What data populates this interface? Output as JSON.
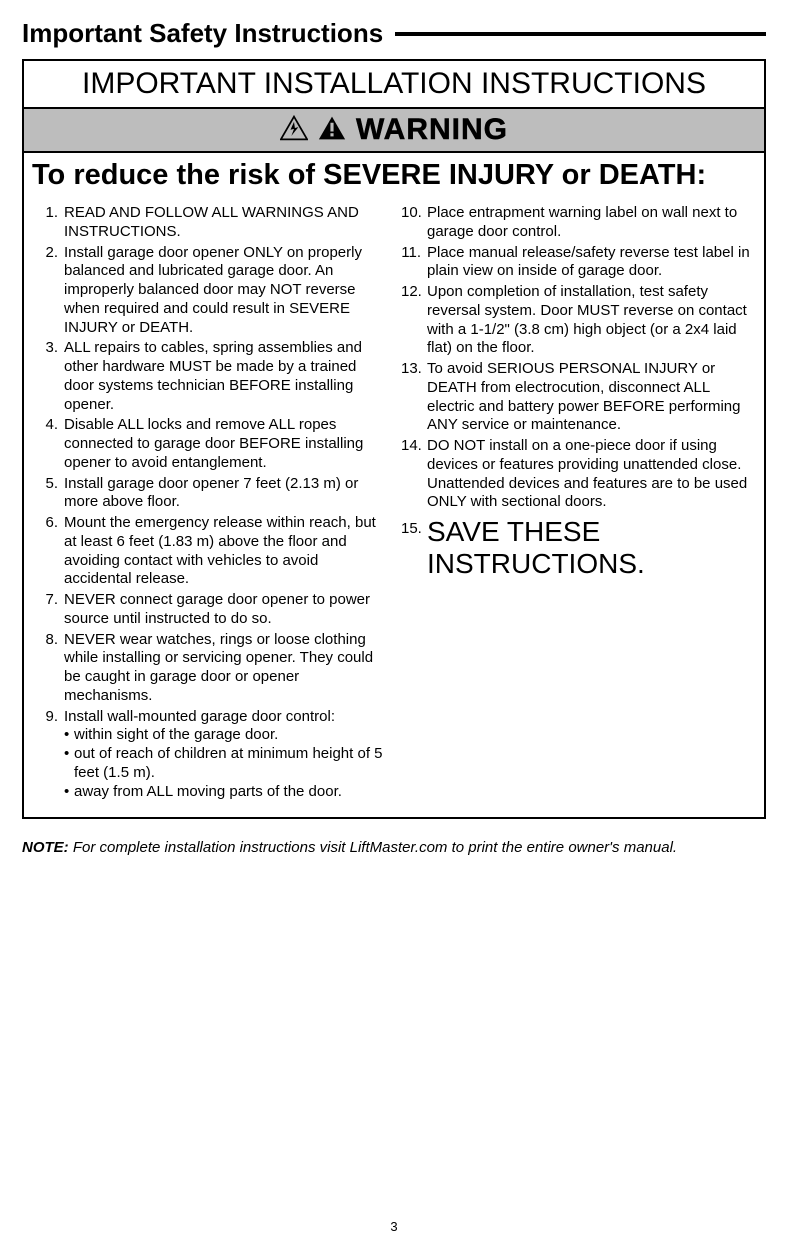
{
  "colors": {
    "text": "#000000",
    "background": "#ffffff",
    "warning_bar_bg": "#bdbdbd",
    "border": "#000000"
  },
  "typography": {
    "section_header_size": 26,
    "box_title_size": 30,
    "warning_size": 30,
    "reduce_risk_size": 29,
    "body_size": 15,
    "save_these_size": 28,
    "note_size": 15,
    "page_num_size": 13
  },
  "header": {
    "title": "Important Safety Instructions"
  },
  "box": {
    "title": "IMPORTANT INSTALLATION INSTRUCTIONS",
    "warning_label": "WARNING",
    "reduce_risk": "To reduce the risk of SEVERE INJURY or DEATH:",
    "left_items": [
      {
        "n": "1.",
        "t": "READ AND FOLLOW ALL WARNINGS AND INSTRUCTIONS."
      },
      {
        "n": "2.",
        "t": "Install garage door opener ONLY on properly balanced and lubricated garage door. An improperly balanced door may NOT reverse when required and could result in SEVERE INJURY or DEATH."
      },
      {
        "n": "3.",
        "t": "ALL repairs to cables, spring assemblies and other hardware MUST be made by a trained door systems technician BEFORE installing opener."
      },
      {
        "n": "4.",
        "t": "Disable ALL locks and remove ALL ropes connected to garage door BEFORE installing opener to avoid entanglement."
      },
      {
        "n": "5.",
        "t": "Install garage door opener 7 feet (2.13 m) or more above floor."
      },
      {
        "n": "6.",
        "t": "Mount the emergency release within reach, but at least 6 feet (1.83 m) above the floor and avoiding contact with vehicles to avoid accidental release."
      },
      {
        "n": "7.",
        "t": "NEVER connect garage door opener to power source until instructed to do so."
      },
      {
        "n": "8.",
        "t": "NEVER wear watches, rings or loose clothing while installing or servicing opener. They could be caught in garage door or opener mechanisms."
      },
      {
        "n": "9.",
        "t": "Install wall-mounted garage door control:"
      }
    ],
    "left_sub": [
      "within sight of the garage door.",
      "out of reach of children at minimum height of 5 feet (1.5 m).",
      "away from ALL moving parts of the door."
    ],
    "right_items": [
      {
        "n": "10.",
        "t": "Place entrapment warning label on wall next to garage door control."
      },
      {
        "n": "11.",
        "t": "Place manual release/safety reverse test label in plain view on inside of garage door."
      },
      {
        "n": "12.",
        "t": "Upon completion of installation, test safety reversal system. Door MUST reverse on contact with a 1-1/2\" (3.8 cm) high object (or a 2x4 laid flat) on the floor."
      },
      {
        "n": "13.",
        "t": "To avoid SERIOUS PERSONAL INJURY or DEATH from electrocution, disconnect ALL electric and battery power BEFORE performing ANY service or maintenance."
      },
      {
        "n": "14.",
        "t": "DO NOT install on a one-piece door if using devices or features providing unattended close. Unattended devices and features are to be used ONLY with sectional doors."
      }
    ],
    "save_num": "15.",
    "save_text": "SAVE THESE INSTRUCTIONS."
  },
  "note": {
    "label": "NOTE:",
    "text": " For complete installation instructions visit LiftMaster.com to print the entire owner's manual."
  },
  "page_number": "3"
}
